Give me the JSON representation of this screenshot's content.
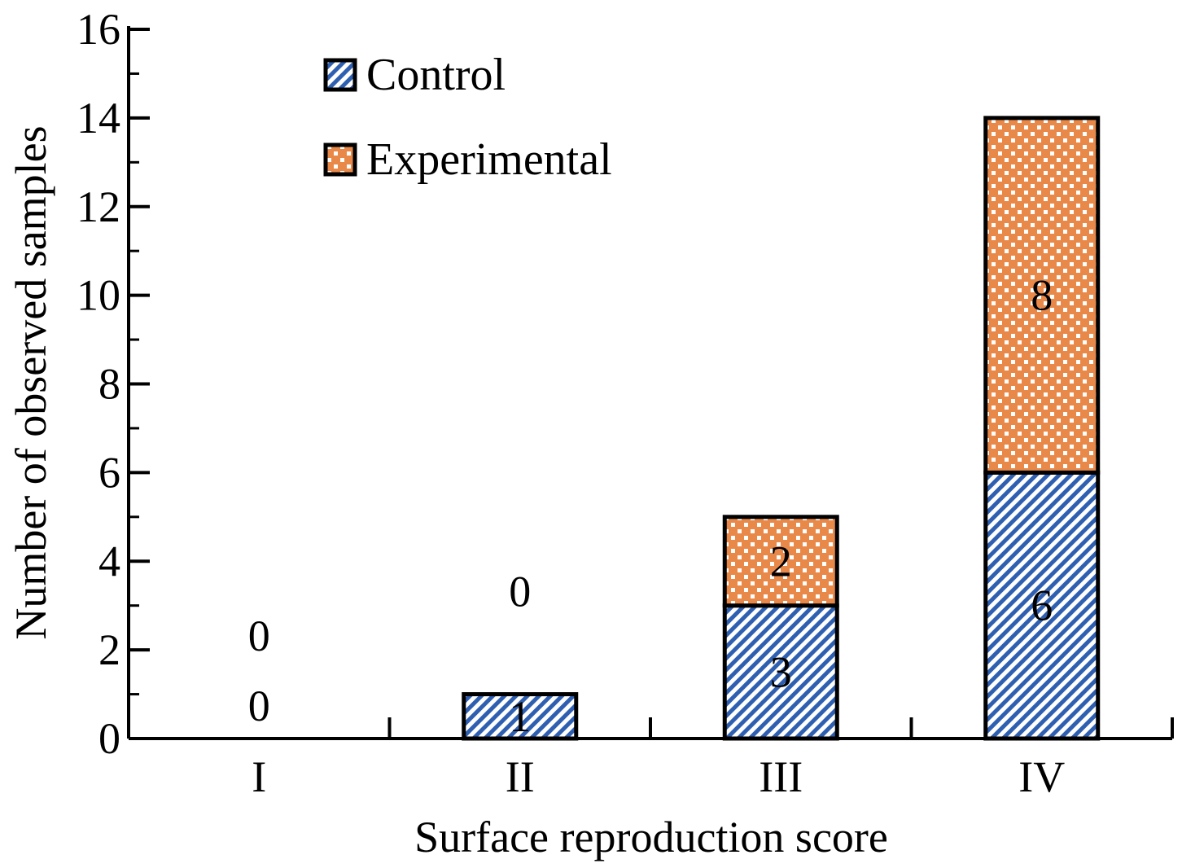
{
  "chart_data": {
    "type": "bar",
    "stacked": true,
    "categories": [
      "I",
      "II",
      "III",
      "IV"
    ],
    "series": [
      {
        "name": "Control",
        "values": [
          0,
          1,
          3,
          6
        ],
        "color": "#2f5fb0",
        "pattern": "diagonal-hatch"
      },
      {
        "name": "Experimental",
        "values": [
          0,
          0,
          2,
          8
        ],
        "color": "#e8894a",
        "pattern": "checker"
      }
    ],
    "xlabel": "Surface reproduction score",
    "ylabel": "Number of observed samples",
    "ylim": [
      0,
      16
    ],
    "yticks": [
      "0",
      "2",
      "4",
      "6",
      "8",
      "10",
      "12",
      "14",
      "16"
    ],
    "legend": "top-left",
    "grid": false
  }
}
